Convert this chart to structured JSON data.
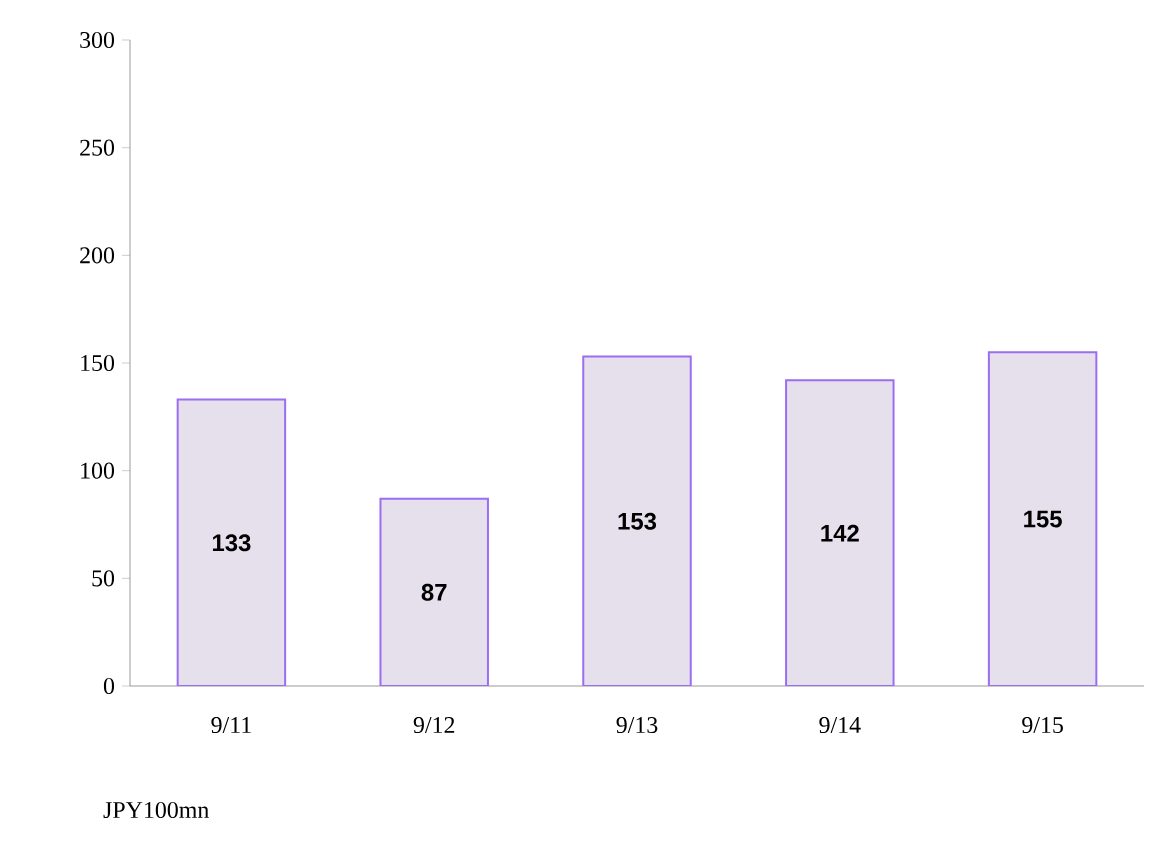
{
  "chart_data": {
    "type": "bar",
    "categories": [
      "9/11",
      "9/12",
      "9/13",
      "9/14",
      "9/15"
    ],
    "values": [
      133,
      87,
      153,
      142,
      155
    ],
    "color": "#e6e0ec",
    "ylim": [
      0,
      300
    ],
    "yticks": [
      0,
      50,
      100,
      150,
      200,
      250,
      300
    ],
    "data_labels": true,
    "annotations": [
      "JPY100mn"
    ]
  }
}
